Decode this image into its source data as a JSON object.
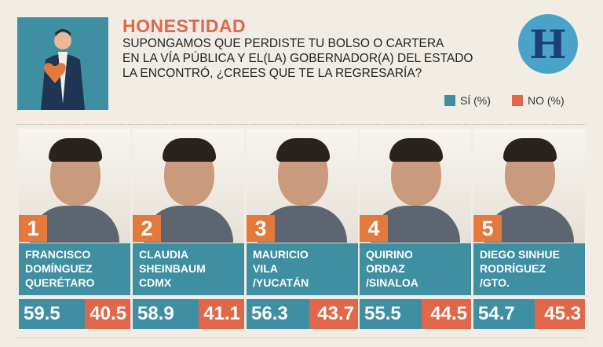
{
  "header": {
    "title": "HONESTIDAD",
    "question_lines": [
      "SUPONGAMOS QUE PERDISTE TU BOLSO O CARTERA",
      "EN LA VÍA PÚBLICA Y EL(LA) GOBERNADOR(A) DEL ESTADO",
      "LA ENCONTRÓ, ¿CREES QUE TE LA REGRESARÍA?"
    ],
    "logo_letter": "H"
  },
  "legend": {
    "yes_label": "SÍ (%)",
    "no_label": "NO (%)",
    "yes_color": "#3f8fa3",
    "no_color": "#e0674a"
  },
  "icons": [
    "man-heart-illustration-icon",
    "h-logo-icon"
  ],
  "chart_data": {
    "type": "bar",
    "categories": [
      "FRANCISCO DOMÍNGUEZ QUERÉTARO",
      "CLAUDIA SHEINBAUM CDMX",
      "MAURICIO VILA /YUCATÁN",
      "QUIRINO ORDAZ /SINALOA",
      "DIEGO SINHUE RODRÍGUEZ /GTO."
    ],
    "series": [
      {
        "name": "SÍ (%)",
        "values": [
          59.5,
          58.9,
          56.3,
          55.5,
          54.7
        ]
      },
      {
        "name": "NO (%)",
        "values": [
          40.5,
          41.1,
          43.7,
          44.5,
          45.3
        ]
      }
    ],
    "stacked": true,
    "orientation": "horizontal",
    "legend_position": "top-right"
  },
  "candidates": [
    {
      "rank": "1",
      "lines": [
        "FRANCISCO",
        "DOMÍNGUEZ",
        "QUERÉTARO"
      ],
      "yes": "59.5",
      "no": "40.5"
    },
    {
      "rank": "2",
      "lines": [
        "CLAUDIA",
        "SHEINBAUM",
        "CDMX"
      ],
      "yes": "58.9",
      "no": "41.1"
    },
    {
      "rank": "3",
      "lines": [
        "MAURICIO",
        "VILA",
        "/YUCATÁN"
      ],
      "yes": "56.3",
      "no": "43.7"
    },
    {
      "rank": "4",
      "lines": [
        "QUIRINO",
        "ORDAZ",
        "/SINALOA"
      ],
      "yes": "55.5",
      "no": "44.5"
    },
    {
      "rank": "5",
      "lines": [
        "DIEGO SINHUE",
        "RODRÍGUEZ",
        "/GTO."
      ],
      "yes": "54.7",
      "no": "45.3"
    }
  ]
}
